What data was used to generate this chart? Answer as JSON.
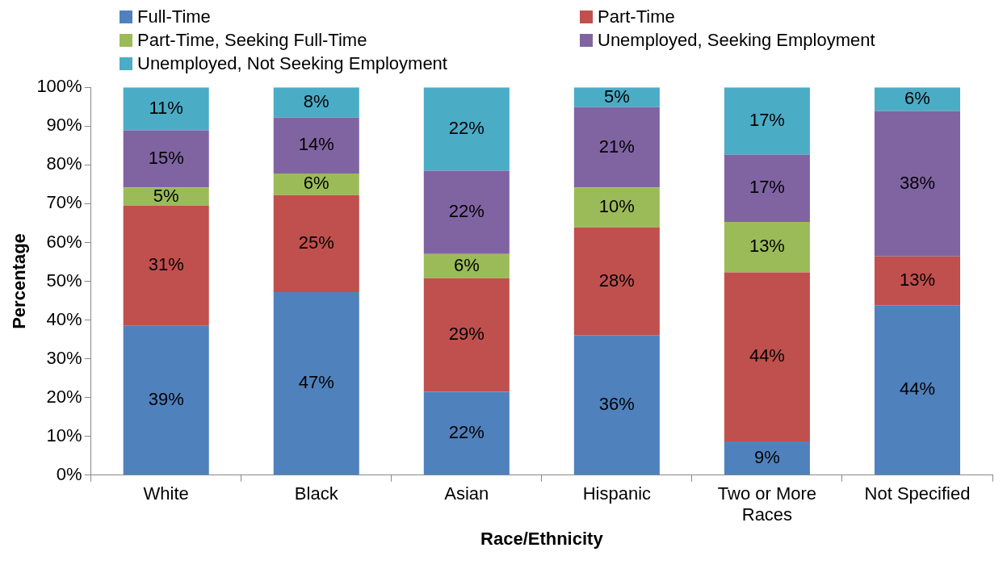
{
  "chart_data": {
    "type": "bar",
    "stacked": true,
    "xlabel": "Race/Ethnicity",
    "ylabel": "Percentage",
    "categories": [
      "White",
      "Black",
      "Asian",
      "Hispanic",
      "Two or More Races",
      "Not Specified"
    ],
    "series": [
      {
        "name": "Full-Time",
        "color": "#4f81bd",
        "values": [
          38.5,
          47.2,
          21.5,
          36.1,
          8.7,
          43.8
        ],
        "value_labels": [
          "39%",
          "47%",
          "22%",
          "36%",
          "9%",
          "44%"
        ]
      },
      {
        "name": "Part-Time",
        "color": "#c0504d",
        "values": [
          31,
          25,
          29.3,
          27.8,
          43.6,
          12.6
        ],
        "value_labels": [
          "31%",
          "25%",
          "29%",
          "28%",
          "44%",
          "13%"
        ]
      },
      {
        "name": "Part-Time, Seeking Full-Time",
        "color": "#9bbb59",
        "values": [
          4.7,
          5.6,
          6.2,
          10.3,
          13,
          0
        ],
        "value_labels": [
          "5%",
          "6%",
          "6%",
          "10%",
          "13%",
          null
        ]
      },
      {
        "name": "Unemployed, Seeking Employment",
        "color": "#8064a2",
        "values": [
          14.7,
          14.4,
          21.5,
          20.7,
          17.3,
          37.5
        ],
        "value_labels": [
          "15%",
          "14%",
          "22%",
          "21%",
          "17%",
          "38%"
        ]
      },
      {
        "name": "Unemployed, Not Seeking Employment",
        "color": "#4bacc6",
        "values": [
          11.1,
          7.8,
          21.5,
          5.1,
          17.4,
          6.1
        ],
        "value_labels": [
          "11%",
          "8%",
          "22%",
          "5%",
          "17%",
          "6%"
        ]
      }
    ],
    "ylim": [
      0,
      100
    ],
    "yticks": [
      {
        "value": 0,
        "label": "0%"
      },
      {
        "value": 10,
        "label": "10%"
      },
      {
        "value": 20,
        "label": "20%"
      },
      {
        "value": 30,
        "label": "30%"
      },
      {
        "value": 40,
        "label": "40%"
      },
      {
        "value": 50,
        "label": "50%"
      },
      {
        "value": 60,
        "label": "60%"
      },
      {
        "value": 70,
        "label": "70%"
      },
      {
        "value": 80,
        "label": "80%"
      },
      {
        "value": 90,
        "label": "90%"
      },
      {
        "value": 100,
        "label": "100%"
      }
    ],
    "grid": false,
    "legend": "top left"
  }
}
